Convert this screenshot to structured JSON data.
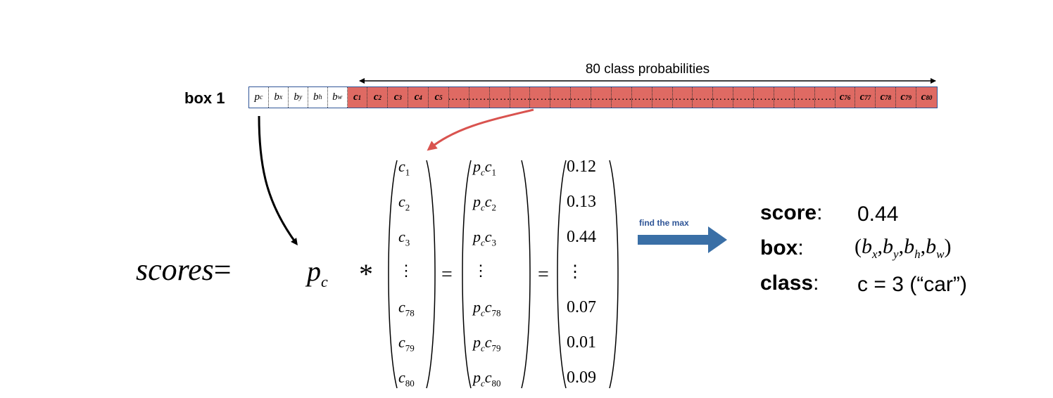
{
  "strip": {
    "row_label": "box 1",
    "span_label": "80 class probabilities",
    "box_cells": [
      "p",
      "b",
      "b",
      "b",
      "b"
    ],
    "box_subscripts": [
      "c",
      "x",
      "y",
      "h",
      "w"
    ],
    "class_cells": [
      {
        "t": "c",
        "s": "1"
      },
      {
        "t": "c",
        "s": "2"
      },
      {
        "t": "c",
        "s": "3"
      },
      {
        "t": "c",
        "s": "4"
      },
      {
        "t": "c",
        "s": "5"
      },
      {
        "t": "……",
        "s": ""
      },
      {
        "t": "……",
        "s": ""
      },
      {
        "t": "……",
        "s": ""
      },
      {
        "t": "……",
        "s": ""
      },
      {
        "t": "……",
        "s": ""
      },
      {
        "t": "……",
        "s": ""
      },
      {
        "t": "……",
        "s": ""
      },
      {
        "t": "……",
        "s": ""
      },
      {
        "t": "……",
        "s": ""
      },
      {
        "t": "……",
        "s": ""
      },
      {
        "t": "……",
        "s": ""
      },
      {
        "t": "……",
        "s": ""
      },
      {
        "t": "……",
        "s": ""
      },
      {
        "t": "……",
        "s": ""
      },
      {
        "t": "……",
        "s": ""
      },
      {
        "t": "……",
        "s": ""
      },
      {
        "t": "……",
        "s": ""
      },
      {
        "t": "……",
        "s": ""
      },
      {
        "t": "……",
        "s": ""
      },
      {
        "t": "c",
        "s": "76"
      },
      {
        "t": "c",
        "s": "77"
      },
      {
        "t": "c",
        "s": "78"
      },
      {
        "t": "c",
        "s": "79"
      },
      {
        "t": "c",
        "s": "80"
      }
    ]
  },
  "equation": {
    "lhs": "scores",
    "equals": "=",
    "pc_base": "p",
    "pc_sub": "c",
    "star": "*",
    "vector_c": [
      {
        "t": "c",
        "s": "1"
      },
      {
        "t": "c",
        "s": "2"
      },
      {
        "t": "c",
        "s": "3"
      },
      {
        "t": "⋮",
        "s": ""
      },
      {
        "t": "c",
        "s": "78"
      },
      {
        "t": "c",
        "s": "79"
      },
      {
        "t": "c",
        "s": "80"
      }
    ],
    "vector_pc": [
      {
        "t": "c",
        "s": "1"
      },
      {
        "t": "c",
        "s": "2"
      },
      {
        "t": "c",
        "s": "3"
      },
      {
        "t": "⋮",
        "s": ""
      },
      {
        "t": "c",
        "s": "78"
      },
      {
        "t": "c",
        "s": "79"
      },
      {
        "t": "c",
        "s": "80"
      }
    ],
    "vector_values": [
      "0.12",
      "0.13",
      "0.44",
      "⋮",
      "0.07",
      "0.01",
      "0.09"
    ]
  },
  "arrow": {
    "label": "find the max",
    "color": "#3a6fa6"
  },
  "result": {
    "score_key": "score",
    "score_value": "0.44",
    "box_key": "box",
    "box_value_parts": [
      "(",
      "b",
      "x",
      ",",
      "b",
      "y",
      ",",
      "b",
      "h",
      ",",
      "b",
      "w",
      ")"
    ],
    "class_key": "class",
    "class_value": "c = 3 (“car”)"
  },
  "colors": {
    "class_cells": "#df6a63",
    "strip_border": "#2f5597",
    "red_arrow": "#d9534f"
  }
}
